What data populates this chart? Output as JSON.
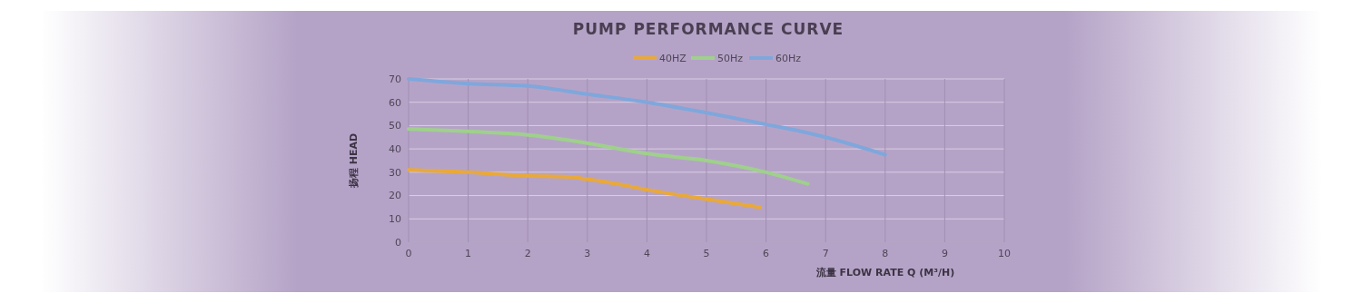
{
  "chart_data": {
    "type": "line",
    "title": "PUMP PERFORMANCE CURVE",
    "xlabel": "流量  FLOW RATE Q (M³/H)",
    "ylabel": "扬程  HEAD",
    "xlim": [
      0,
      10
    ],
    "xticks": [
      0,
      1,
      2,
      3,
      4,
      5,
      6,
      7,
      8,
      9,
      10
    ],
    "ylim": [
      0,
      70
    ],
    "yticks": [
      0,
      10,
      20,
      30,
      40,
      50,
      60,
      70
    ],
    "grid": true,
    "legend": "top",
    "marker": "none",
    "line_style": "solid",
    "series": [
      {
        "name": "40HZ",
        "color": "#e9a93a",
        "x": [
          0,
          1,
          2,
          2.7,
          3,
          3.5,
          4,
          5,
          5.9
        ],
        "values": [
          31,
          30,
          28.5,
          28,
          27,
          25,
          22.5,
          18.5,
          15
        ]
      },
      {
        "name": "50Hz",
        "color": "#9fd08c",
        "x": [
          0,
          1,
          2,
          3,
          4,
          5,
          6,
          6.7
        ],
        "values": [
          48.5,
          47.5,
          46,
          42.5,
          38,
          35,
          30,
          25
        ]
      },
      {
        "name": "60Hz",
        "color": "#7fa7dc",
        "x": [
          0,
          1,
          2,
          3,
          4,
          5,
          6,
          6.5,
          7,
          8
        ],
        "values": [
          70,
          68,
          67,
          63.5,
          60,
          55.5,
          50.5,
          48,
          45,
          37.5
        ]
      }
    ]
  }
}
